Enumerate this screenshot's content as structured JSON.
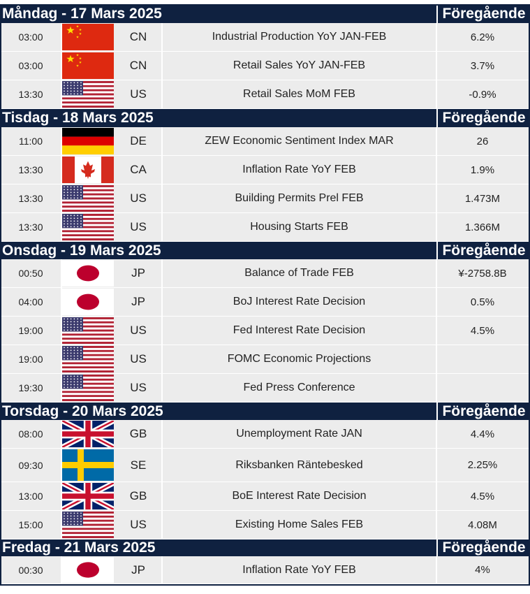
{
  "header": {
    "previous_label": "Föregående"
  },
  "colors": {
    "header_bg": "#0f2140",
    "row_bg": "#ececec"
  },
  "days": [
    {
      "label": "Måndag - 17 Mars 2025",
      "events": [
        {
          "time": "03:00",
          "flag": "cn",
          "code": "CN",
          "name": "Industrial Production YoY JAN-FEB",
          "previous": "6.2%"
        },
        {
          "time": "03:00",
          "flag": "cn",
          "code": "CN",
          "name": "Retail Sales YoY JAN-FEB",
          "previous": "3.7%"
        },
        {
          "time": "13:30",
          "flag": "us",
          "code": "US",
          "name": "Retail Sales MoM FEB",
          "previous": "-0.9%"
        }
      ]
    },
    {
      "label": "Tisdag - 18 Mars 2025",
      "events": [
        {
          "time": "11:00",
          "flag": "de",
          "code": "DE",
          "name": "ZEW Economic Sentiment Index MAR",
          "previous": "26"
        },
        {
          "time": "13:30",
          "flag": "ca",
          "code": "CA",
          "name": "Inflation Rate YoY FEB",
          "previous": "1.9%"
        },
        {
          "time": "13:30",
          "flag": "us",
          "code": "US",
          "name": "Building Permits Prel FEB",
          "previous": "1.473M"
        },
        {
          "time": "13:30",
          "flag": "us",
          "code": "US",
          "name": "Housing Starts FEB",
          "previous": "1.366M"
        }
      ]
    },
    {
      "label": "Onsdag - 19 Mars 2025",
      "events": [
        {
          "time": "00:50",
          "flag": "jp",
          "code": "JP",
          "name": "Balance of Trade FEB",
          "previous": "¥-2758.8B"
        },
        {
          "time": "04:00",
          "flag": "jp",
          "code": "JP",
          "name": "BoJ Interest Rate Decision",
          "previous": "0.5%"
        },
        {
          "time": "19:00",
          "flag": "us",
          "code": "US",
          "name": "Fed Interest Rate Decision",
          "previous": "4.5%"
        },
        {
          "time": "19:00",
          "flag": "us",
          "code": "US",
          "name": "FOMC Economic Projections",
          "previous": ""
        },
        {
          "time": "19:30",
          "flag": "us",
          "code": "US",
          "name": "Fed Press Conference",
          "previous": ""
        }
      ]
    },
    {
      "label": "Torsdag - 20 Mars 2025",
      "events": [
        {
          "time": "08:00",
          "flag": "gb",
          "code": "GB",
          "name": "Unemployment Rate JAN",
          "previous": "4.4%"
        },
        {
          "time": "09:30",
          "flag": "se",
          "code": "SE",
          "name": "Riksbanken Räntebesked",
          "previous": "2.25%"
        },
        {
          "time": "13:00",
          "flag": "gb",
          "code": "GB",
          "name": "BoE Interest Rate Decision",
          "previous": "4.5%"
        },
        {
          "time": "15:00",
          "flag": "us",
          "code": "US",
          "name": "Existing Home Sales FEB",
          "previous": "4.08M"
        }
      ]
    },
    {
      "label": "Fredag - 21 Mars 2025",
      "events": [
        {
          "time": "00:30",
          "flag": "jp",
          "code": "JP",
          "name": "Inflation Rate YoY FEB",
          "previous": "4%"
        }
      ]
    }
  ]
}
